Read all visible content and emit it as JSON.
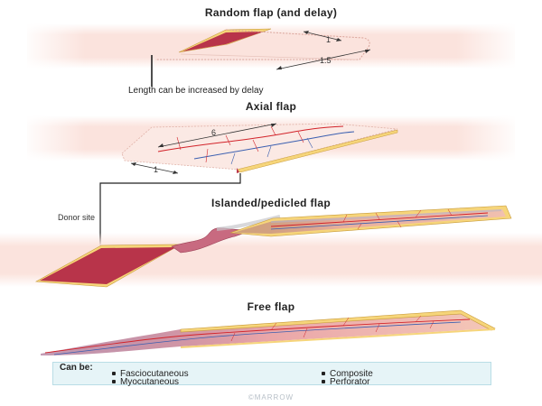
{
  "sections": {
    "random": {
      "title": "Random flap (and delay)",
      "dim_short": "1",
      "dim_long": "1.5",
      "note": "Length can be increased by delay"
    },
    "axial": {
      "title": "Axial flap",
      "dim_long": "6",
      "dim_short": "1"
    },
    "islanded": {
      "title": "Islanded/pedicled flap",
      "donor_label": "Donor site"
    },
    "free": {
      "title": "Free flap"
    }
  },
  "legend": {
    "title": "Can be:",
    "items": [
      "Fasciocutaneous",
      "Myocutaneous",
      "Composite",
      "Perforator"
    ]
  },
  "watermark": "©MARROW",
  "colors": {
    "skin_band": "#fbe3dd",
    "flap_red": "#b8344a",
    "fat_yellow": "#f6d57a",
    "artery": "#d2232a",
    "vein": "#3b5fb0",
    "legend_bg": "#e6f4f7"
  }
}
